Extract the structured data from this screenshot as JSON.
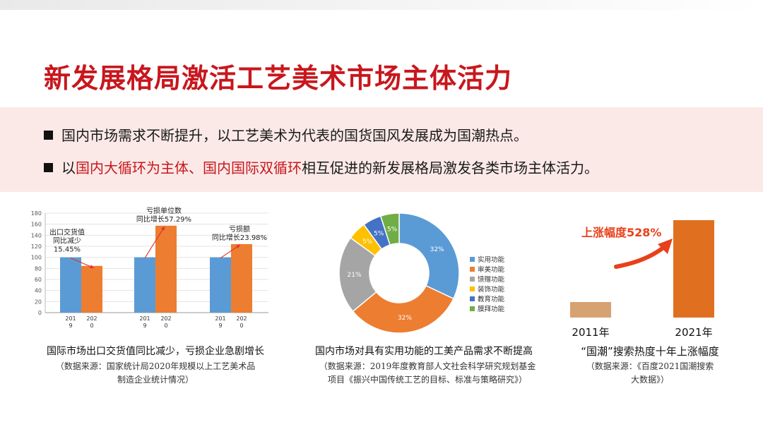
{
  "title": "新发展格局激活工艺美术市场主体活力",
  "bullets": [
    {
      "parts": [
        "国内市场需求不断提升，以工艺美术为代表的国货国风发展成为国潮热点。"
      ]
    },
    {
      "parts": [
        "以",
        "国内大循环为主体、国内国际双循环",
        "相互促进的新发展格局激发各类市场主体活力。"
      ]
    }
  ],
  "colors": {
    "title": "#c8171d",
    "blue": "#5b9bd5",
    "orange": "#ed7d31",
    "gray": "#a5a5a5",
    "yellow": "#ffc000",
    "darkblue": "#4472c4",
    "green": "#70ad47",
    "tan": "#d6a272",
    "dark_orange": "#e0701f"
  },
  "chart_data": [
    {
      "type": "bar",
      "y_ticks": [
        "0",
        "20",
        "40",
        "60",
        "80",
        "100",
        "120",
        "140",
        "160",
        "180"
      ],
      "ylim": [
        0,
        180
      ],
      "groups": [
        {
          "tick_labels": [
            "2019",
            "2020"
          ],
          "values": [
            100,
            84.55
          ],
          "annotation": [
            "出口交货值",
            "同比减少",
            "15.45%"
          ]
        },
        {
          "tick_labels": [
            "2019",
            "2020"
          ],
          "values": [
            100,
            157.29
          ],
          "annotation": [
            "亏损单位数",
            "同比增长57.29%"
          ]
        },
        {
          "tick_labels": [
            "2019",
            "2020"
          ],
          "values": [
            100,
            123.98
          ],
          "annotation": [
            "亏损额",
            "同比增长23.98%"
          ]
        }
      ],
      "caption": "国际市场出口交货值同比减少，亏损企业急剧增长",
      "source": [
        "（数据来源：国家统计局2020年规模以上工艺美术品",
        "制造企业统计情况）"
      ]
    },
    {
      "type": "pie",
      "donut": true,
      "slices": [
        {
          "name": "实用功能",
          "value": 32,
          "label": "32%",
          "color": "#5b9bd5"
        },
        {
          "name": "审美功能",
          "value": 32,
          "label": "32%",
          "color": "#ed7d31"
        },
        {
          "name": "馈赠功能",
          "value": 21,
          "label": "21%",
          "color": "#a5a5a5"
        },
        {
          "name": "装饰功能",
          "value": 5,
          "label": "5%",
          "color": "#ffc000"
        },
        {
          "name": "教育功能",
          "value": 5,
          "label": "5%",
          "color": "#4472c4"
        },
        {
          "name": "膜拜功能",
          "value": 5,
          "label": "5%",
          "color": "#70ad47"
        }
      ],
      "legend_position": "right",
      "caption": "国内市场对具有实用功能的工美产品需求不断提高",
      "source": [
        "（数据来源：2019年度教育部人文社会科学研究规划基金",
        "项目《振兴中国传统工艺的目标、标准与策略研究》）"
      ]
    },
    {
      "type": "bar",
      "categories": [
        "2011年",
        "2021年"
      ],
      "values": [
        100,
        628
      ],
      "colors": [
        "#d6a272",
        "#e0701f"
      ],
      "annotation": "上涨幅度528%",
      "caption": "“国潮”搜索热度十年上涨幅度",
      "source": [
        "（数据来源：《百度2021国潮搜索",
        "大数据》）"
      ]
    }
  ]
}
